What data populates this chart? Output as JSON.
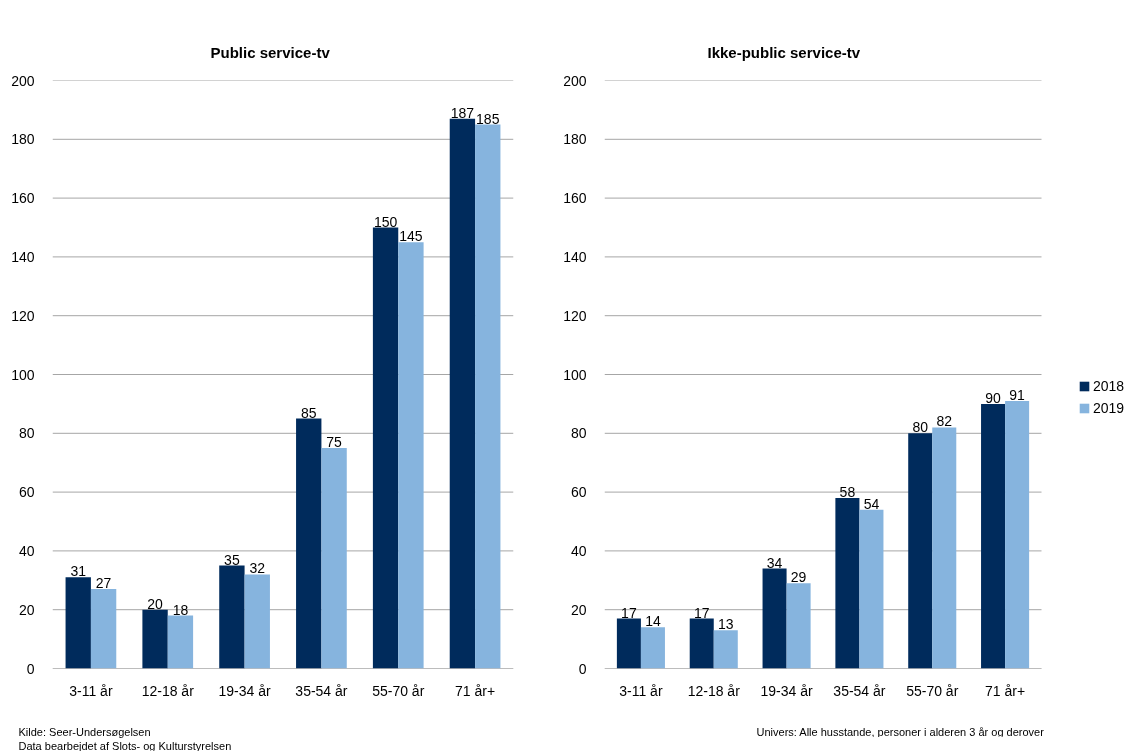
{
  "chart_data": [
    {
      "type": "bar",
      "title": "Public service-tv",
      "categories": [
        "3-11 år",
        "12-18 år",
        "19-34 år",
        "35-54 år",
        "55-70 år",
        "71 år+"
      ],
      "series": [
        {
          "color": "#002b5c",
          "values": [
            31,
            20,
            35,
            85,
            150,
            187
          ]
        },
        {
          "color": "#86b4de",
          "values": [
            27,
            18,
            32,
            75,
            145,
            185
          ]
        }
      ],
      "ylim": [
        0,
        200
      ],
      "yticks": [
        0,
        20,
        40,
        60,
        80,
        100,
        120,
        140,
        160,
        180,
        200
      ],
      "grid": "y",
      "data_labels": true,
      "annotations": [
        "Kilde: Seer-Undersøgelsen",
        "Data bearbejdet af Slots- og Kulturstyrelsen"
      ]
    },
    {
      "type": "bar",
      "title": "Ikke-public service-tv",
      "categories": [
        "3-11 år",
        "12-18 år",
        "19-34 år",
        "35-54 år",
        "55-70 år",
        "71 år+"
      ],
      "series": [
        {
          "name": "2018",
          "color": "#002b5c",
          "values": [
            17,
            17,
            34,
            58,
            80,
            90
          ]
        },
        {
          "name": "2019",
          "color": "#86b4de",
          "values": [
            14,
            13,
            29,
            54,
            82,
            91
          ]
        }
      ],
      "ylim": [
        0,
        200
      ],
      "yticks": [
        0,
        20,
        40,
        60,
        80,
        100,
        120,
        140,
        160,
        180,
        200
      ],
      "grid": "y",
      "legend": "right",
      "data_labels": true,
      "annotations": [
        "Univers: Alle husstande, personer i alderen 3 år og derover"
      ]
    }
  ]
}
